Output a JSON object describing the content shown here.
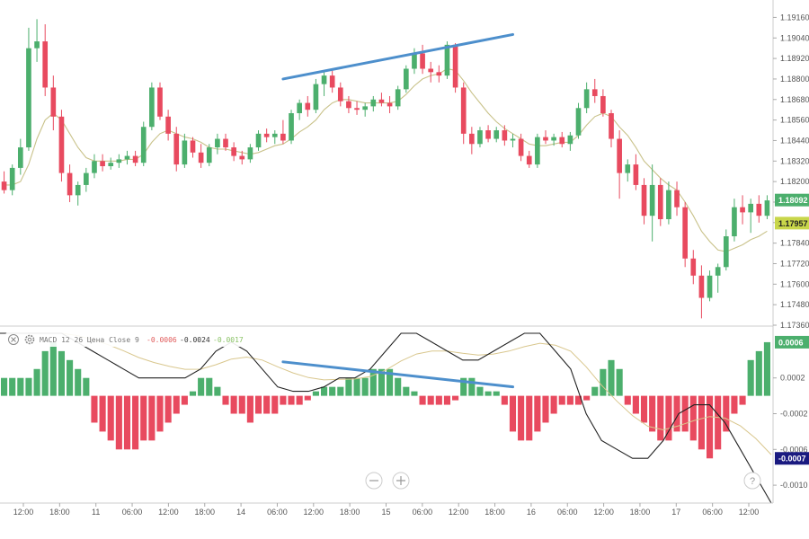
{
  "chart_data": [
    {
      "type": "candlestick",
      "title": "",
      "ylim": [
        1.1736,
        1.1922
      ],
      "y_ticks": [
        "1.19160",
        "1.19040",
        "1.18920",
        "1.18800",
        "1.18680",
        "1.18560",
        "1.18440",
        "1.18320",
        "1.18200",
        "1.18080",
        "1.17960",
        "1.17840",
        "1.17720",
        "1.17600",
        "1.17480",
        "1.17360"
      ],
      "candles": [
        {
          "o": 1.182,
          "h": 1.1826,
          "l": 1.1813,
          "c": 1.1815
        },
        {
          "o": 1.1815,
          "h": 1.183,
          "l": 1.1812,
          "c": 1.1828
        },
        {
          "o": 1.1828,
          "h": 1.1845,
          "l": 1.1824,
          "c": 1.184
        },
        {
          "o": 1.184,
          "h": 1.191,
          "l": 1.1838,
          "c": 1.1898
        },
        {
          "o": 1.1898,
          "h": 1.1915,
          "l": 1.189,
          "c": 1.1902
        },
        {
          "o": 1.1902,
          "h": 1.1912,
          "l": 1.187,
          "c": 1.1875
        },
        {
          "o": 1.1875,
          "h": 1.1882,
          "l": 1.185,
          "c": 1.1858
        },
        {
          "o": 1.1858,
          "h": 1.1862,
          "l": 1.182,
          "c": 1.1825
        },
        {
          "o": 1.1825,
          "h": 1.183,
          "l": 1.1808,
          "c": 1.1812
        },
        {
          "o": 1.1812,
          "h": 1.182,
          "l": 1.1806,
          "c": 1.1818
        },
        {
          "o": 1.1818,
          "h": 1.1828,
          "l": 1.1814,
          "c": 1.1825
        },
        {
          "o": 1.1825,
          "h": 1.1836,
          "l": 1.1822,
          "c": 1.1832
        },
        {
          "o": 1.1832,
          "h": 1.1836,
          "l": 1.1826,
          "c": 1.1829
        },
        {
          "o": 1.1829,
          "h": 1.1834,
          "l": 1.1827,
          "c": 1.1831
        },
        {
          "o": 1.1831,
          "h": 1.1836,
          "l": 1.1828,
          "c": 1.1833
        },
        {
          "o": 1.1833,
          "h": 1.1838,
          "l": 1.183,
          "c": 1.1835
        },
        {
          "o": 1.1835,
          "h": 1.1838,
          "l": 1.1829,
          "c": 1.1831
        },
        {
          "o": 1.1831,
          "h": 1.1855,
          "l": 1.1829,
          "c": 1.1852
        },
        {
          "o": 1.1852,
          "h": 1.1878,
          "l": 1.185,
          "c": 1.1875
        },
        {
          "o": 1.1875,
          "h": 1.1878,
          "l": 1.1856,
          "c": 1.1858
        },
        {
          "o": 1.1858,
          "h": 1.1862,
          "l": 1.1844,
          "c": 1.1848
        },
        {
          "o": 1.1848,
          "h": 1.1852,
          "l": 1.1826,
          "c": 1.183
        },
        {
          "o": 1.183,
          "h": 1.1848,
          "l": 1.1828,
          "c": 1.1844
        },
        {
          "o": 1.1844,
          "h": 1.1846,
          "l": 1.1834,
          "c": 1.1837
        },
        {
          "o": 1.1837,
          "h": 1.1842,
          "l": 1.1828,
          "c": 1.1831
        },
        {
          "o": 1.1831,
          "h": 1.1842,
          "l": 1.1829,
          "c": 1.184
        },
        {
          "o": 1.184,
          "h": 1.1848,
          "l": 1.1836,
          "c": 1.1845
        },
        {
          "o": 1.1845,
          "h": 1.1848,
          "l": 1.1838,
          "c": 1.184
        },
        {
          "o": 1.184,
          "h": 1.1843,
          "l": 1.1832,
          "c": 1.1835
        },
        {
          "o": 1.1835,
          "h": 1.1838,
          "l": 1.183,
          "c": 1.1833
        },
        {
          "o": 1.1833,
          "h": 1.1842,
          "l": 1.1831,
          "c": 1.184
        },
        {
          "o": 1.184,
          "h": 1.185,
          "l": 1.1838,
          "c": 1.1848
        },
        {
          "o": 1.1848,
          "h": 1.1851,
          "l": 1.1843,
          "c": 1.1846
        },
        {
          "o": 1.1846,
          "h": 1.185,
          "l": 1.1842,
          "c": 1.1848
        },
        {
          "o": 1.1848,
          "h": 1.1856,
          "l": 1.1842,
          "c": 1.1844
        },
        {
          "o": 1.1844,
          "h": 1.1862,
          "l": 1.1842,
          "c": 1.186
        },
        {
          "o": 1.186,
          "h": 1.1868,
          "l": 1.1856,
          "c": 1.1866
        },
        {
          "o": 1.1866,
          "h": 1.187,
          "l": 1.1858,
          "c": 1.1862
        },
        {
          "o": 1.1862,
          "h": 1.188,
          "l": 1.186,
          "c": 1.1877
        },
        {
          "o": 1.1877,
          "h": 1.1884,
          "l": 1.187,
          "c": 1.1882
        },
        {
          "o": 1.1882,
          "h": 1.1886,
          "l": 1.1872,
          "c": 1.1875
        },
        {
          "o": 1.1875,
          "h": 1.1878,
          "l": 1.1864,
          "c": 1.1867
        },
        {
          "o": 1.1867,
          "h": 1.187,
          "l": 1.186,
          "c": 1.1863
        },
        {
          "o": 1.1863,
          "h": 1.1867,
          "l": 1.1859,
          "c": 1.1862
        },
        {
          "o": 1.1862,
          "h": 1.1866,
          "l": 1.1858,
          "c": 1.1864
        },
        {
          "o": 1.1864,
          "h": 1.187,
          "l": 1.1861,
          "c": 1.1868
        },
        {
          "o": 1.1868,
          "h": 1.1872,
          "l": 1.1864,
          "c": 1.1866
        },
        {
          "o": 1.1866,
          "h": 1.187,
          "l": 1.186,
          "c": 1.1864
        },
        {
          "o": 1.1864,
          "h": 1.1876,
          "l": 1.1862,
          "c": 1.1874
        },
        {
          "o": 1.1874,
          "h": 1.1888,
          "l": 1.1872,
          "c": 1.1886
        },
        {
          "o": 1.1886,
          "h": 1.1898,
          "l": 1.1883,
          "c": 1.1895
        },
        {
          "o": 1.1895,
          "h": 1.19,
          "l": 1.1883,
          "c": 1.1886
        },
        {
          "o": 1.1886,
          "h": 1.189,
          "l": 1.1878,
          "c": 1.1884
        },
        {
          "o": 1.1884,
          "h": 1.1888,
          "l": 1.1878,
          "c": 1.1882
        },
        {
          "o": 1.1882,
          "h": 1.1902,
          "l": 1.188,
          "c": 1.19
        },
        {
          "o": 1.19,
          "h": 1.1901,
          "l": 1.1872,
          "c": 1.1875
        },
        {
          "o": 1.1875,
          "h": 1.1878,
          "l": 1.1842,
          "c": 1.1848
        },
        {
          "o": 1.1848,
          "h": 1.1852,
          "l": 1.1836,
          "c": 1.1842
        },
        {
          "o": 1.1842,
          "h": 1.1852,
          "l": 1.184,
          "c": 1.185
        },
        {
          "o": 1.185,
          "h": 1.1853,
          "l": 1.1843,
          "c": 1.1845
        },
        {
          "o": 1.1845,
          "h": 1.1852,
          "l": 1.1843,
          "c": 1.185
        },
        {
          "o": 1.185,
          "h": 1.1853,
          "l": 1.1841,
          "c": 1.1844
        },
        {
          "o": 1.1844,
          "h": 1.1848,
          "l": 1.184,
          "c": 1.1845
        },
        {
          "o": 1.1845,
          "h": 1.1848,
          "l": 1.1832,
          "c": 1.1835
        },
        {
          "o": 1.1835,
          "h": 1.1838,
          "l": 1.1828,
          "c": 1.183
        },
        {
          "o": 1.183,
          "h": 1.1848,
          "l": 1.1828,
          "c": 1.1846
        },
        {
          "o": 1.1846,
          "h": 1.185,
          "l": 1.1842,
          "c": 1.1844
        },
        {
          "o": 1.1844,
          "h": 1.1848,
          "l": 1.1841,
          "c": 1.1846
        },
        {
          "o": 1.1846,
          "h": 1.1849,
          "l": 1.184,
          "c": 1.1842
        },
        {
          "o": 1.1842,
          "h": 1.1849,
          "l": 1.1838,
          "c": 1.1847
        },
        {
          "o": 1.1847,
          "h": 1.1866,
          "l": 1.1845,
          "c": 1.1863
        },
        {
          "o": 1.1863,
          "h": 1.1878,
          "l": 1.186,
          "c": 1.1874
        },
        {
          "o": 1.1874,
          "h": 1.188,
          "l": 1.1866,
          "c": 1.187
        },
        {
          "o": 1.187,
          "h": 1.1874,
          "l": 1.1858,
          "c": 1.186
        },
        {
          "o": 1.186,
          "h": 1.1862,
          "l": 1.184,
          "c": 1.1845
        },
        {
          "o": 1.1845,
          "h": 1.185,
          "l": 1.181,
          "c": 1.1825
        },
        {
          "o": 1.1825,
          "h": 1.1833,
          "l": 1.182,
          "c": 1.183
        },
        {
          "o": 1.183,
          "h": 1.1836,
          "l": 1.1815,
          "c": 1.1818
        },
        {
          "o": 1.1818,
          "h": 1.1822,
          "l": 1.1795,
          "c": 1.18
        },
        {
          "o": 1.18,
          "h": 1.183,
          "l": 1.1785,
          "c": 1.1818
        },
        {
          "o": 1.1818,
          "h": 1.1822,
          "l": 1.1794,
          "c": 1.1798
        },
        {
          "o": 1.1798,
          "h": 1.182,
          "l": 1.1795,
          "c": 1.1815
        },
        {
          "o": 1.1815,
          "h": 1.182,
          "l": 1.18,
          "c": 1.1805
        },
        {
          "o": 1.1805,
          "h": 1.1808,
          "l": 1.177,
          "c": 1.1775
        },
        {
          "o": 1.1775,
          "h": 1.178,
          "l": 1.176,
          "c": 1.1765
        },
        {
          "o": 1.1765,
          "h": 1.1771,
          "l": 1.174,
          "c": 1.1752
        },
        {
          "o": 1.1752,
          "h": 1.1768,
          "l": 1.175,
          "c": 1.1765
        },
        {
          "o": 1.1765,
          "h": 1.1772,
          "l": 1.1755,
          "c": 1.177
        },
        {
          "o": 1.177,
          "h": 1.1792,
          "l": 1.1768,
          "c": 1.1788
        },
        {
          "o": 1.1788,
          "h": 1.181,
          "l": 1.1785,
          "c": 1.1805
        },
        {
          "o": 1.1805,
          "h": 1.1812,
          "l": 1.1795,
          "c": 1.1802
        },
        {
          "o": 1.1802,
          "h": 1.181,
          "l": 1.179,
          "c": 1.1807
        },
        {
          "o": 1.1807,
          "h": 1.1812,
          "l": 1.1796,
          "c": 1.18
        },
        {
          "o": 1.18,
          "h": 1.1812,
          "l": 1.1798,
          "c": 1.1809
        }
      ],
      "sma_line": [
        1.1818,
        1.1818,
        1.182,
        1.183,
        1.1845,
        1.1856,
        1.186,
        1.1856,
        1.1848,
        1.184,
        1.1834,
        1.1832,
        1.1832,
        1.1832,
        1.1832,
        1.1833,
        1.1833,
        1.1836,
        1.1843,
        1.1848,
        1.185,
        1.1848,
        1.1846,
        1.1845,
        1.1843,
        1.184,
        1.1839,
        1.1839,
        1.1838,
        1.1837,
        1.1836,
        1.1837,
        1.1839,
        1.1841,
        1.1842,
        1.1845,
        1.1849,
        1.1852,
        1.1856,
        1.1862,
        1.1866,
        1.1868,
        1.1868,
        1.1867,
        1.1866,
        1.1866,
        1.1866,
        1.1866,
        1.1867,
        1.1871,
        1.1876,
        1.188,
        1.1882,
        1.1883,
        1.1886,
        1.1885,
        1.1879,
        1.1872,
        1.1866,
        1.186,
        1.1855,
        1.1851,
        1.1848,
        1.1845,
        1.1842,
        1.1841,
        1.1841,
        1.1842,
        1.1843,
        1.1843,
        1.1847,
        1.1853,
        1.1858,
        1.186,
        1.1858,
        1.1852,
        1.1847,
        1.184,
        1.1832,
        1.1827,
        1.1822,
        1.1818,
        1.1815,
        1.1808,
        1.18,
        1.1791,
        1.1785,
        1.178,
        1.1779,
        1.1781,
        1.1783,
        1.1786,
        1.1788,
        1.1791
      ],
      "trend_line": {
        "from": {
          "i": 34,
          "y": 1.188
        },
        "to": {
          "i": 62,
          "y": 1.1906
        }
      },
      "current_badges": [
        {
          "value": "1.18092",
          "y": 1.18092,
          "bg": "#4caf6d",
          "fg": "#ffffff"
        },
        {
          "value": "1.17957",
          "y": 1.17957,
          "bg": "#c8d64a",
          "fg": "#222222"
        }
      ]
    },
    {
      "type": "macd",
      "legend": {
        "name": "MACD 12 26 Цена Close 9",
        "value1": "-0.0006",
        "value2": "-0.0024",
        "value3": "-0.0017",
        "value1_color": "#e05a5a",
        "value2_color": "#333333",
        "value3_color": "#8ac266"
      },
      "ylim": [
        -0.00118,
        0.00075
      ],
      "y_ticks": [
        "0.0002",
        "-0.0002",
        "-0.0006",
        "-0.0010"
      ],
      "histogram": [
        0.0002,
        0.0002,
        0.0002,
        0.0002,
        0.0003,
        0.0005,
        0.0006,
        0.0005,
        0.0004,
        0.0003,
        0.0002,
        -0.0003,
        -0.0004,
        -0.0005,
        -0.0006,
        -0.0006,
        -0.0006,
        -0.0005,
        -0.0005,
        -0.0004,
        -0.0003,
        -0.0002,
        -0.0001,
        5e-05,
        0.0002,
        0.0002,
        0.0001,
        -0.0001,
        -0.0002,
        -0.0002,
        -0.0003,
        -0.0002,
        -0.0002,
        -0.0002,
        -0.0001,
        -0.0001,
        -0.0001,
        -5e-05,
        5e-05,
        0.0001,
        0.0001,
        0.0001,
        0.0002,
        0.0002,
        0.0002,
        0.0003,
        0.0003,
        0.0003,
        0.0002,
        0.0001,
        5e-05,
        -0.0001,
        -0.0001,
        -0.0001,
        -0.0001,
        -5e-05,
        0.0002,
        0.0002,
        0.0001,
        5e-05,
        5e-05,
        -0.0001,
        -0.0004,
        -0.0005,
        -0.0005,
        -0.0004,
        -0.0003,
        -0.0002,
        -0.0001,
        -0.0001,
        -0.0001,
        -5e-05,
        0.0001,
        0.0003,
        0.0004,
        0.0003,
        -0.0001,
        -0.0002,
        -0.0003,
        -0.0004,
        -0.0005,
        -0.0005,
        -0.0004,
        -0.0004,
        -0.0005,
        -0.0006,
        -0.0007,
        -0.0006,
        -0.0004,
        -0.0002,
        -0.0001,
        0.0004,
        0.0005,
        0.0006
      ],
      "macd_line": [
        0.0007,
        0.0007,
        0.0007,
        0.0007,
        0.0007,
        0.0006,
        0.0005,
        0.0004,
        0.0003,
        0.0002,
        0.0002,
        0.0002,
        0.0002,
        0.0003,
        0.0005,
        0.0006,
        0.0005,
        0.0003,
        0.0001,
        5e-05,
        5e-05,
        0.0001,
        0.0002,
        0.0002,
        0.0003,
        0.0005,
        0.0007,
        0.0007,
        0.0006,
        0.0005,
        0.0004,
        0.0004,
        0.0005,
        0.0006,
        0.0007,
        0.0007,
        0.0005,
        0.0003,
        -0.0002,
        -0.0005,
        -0.0006,
        -0.0007,
        -0.0007,
        -0.0005,
        -0.0002,
        -0.0001,
        -0.0001,
        -0.0003,
        -0.0006,
        -0.0009,
        -0.0012
      ],
      "trend_line": {
        "from": {
          "i": 34,
          "y": 0.00038
        },
        "to": {
          "i": 62,
          "y": 0.0001
        }
      },
      "current_badges": [
        {
          "value": "0.0006",
          "y": 0.0006,
          "bg": "#4caf6d",
          "fg": "#ffffff"
        },
        {
          "value": "-0.0007",
          "y": -0.0007,
          "bg": "#1a1a80",
          "fg": "#ffffff"
        }
      ]
    }
  ],
  "x_axis": {
    "ticks": [
      "12:00",
      "18:00",
      "11",
      "06:00",
      "12:00",
      "18:00",
      "14",
      "06:00",
      "12:00",
      "18:00",
      "15",
      "06:00",
      "12:00",
      "18:00",
      "16",
      "06:00",
      "12:00",
      "18:00",
      "17",
      "06:00",
      "12:00"
    ]
  },
  "colors": {
    "up": "#4caf6d",
    "down": "#e84a5f",
    "sma": "#c9c28a",
    "trend": "#4d8fcc",
    "macd_line": "#222222",
    "signal_line": "#d9c78e",
    "grid": "#e0e0e0"
  },
  "controls": {
    "close_icon": "close-icon",
    "settings_icon": "gear-icon",
    "zoom_out_icon": "minus-icon",
    "zoom_in_icon": "plus-icon",
    "help_icon": "question-icon",
    "help_text": "?"
  }
}
